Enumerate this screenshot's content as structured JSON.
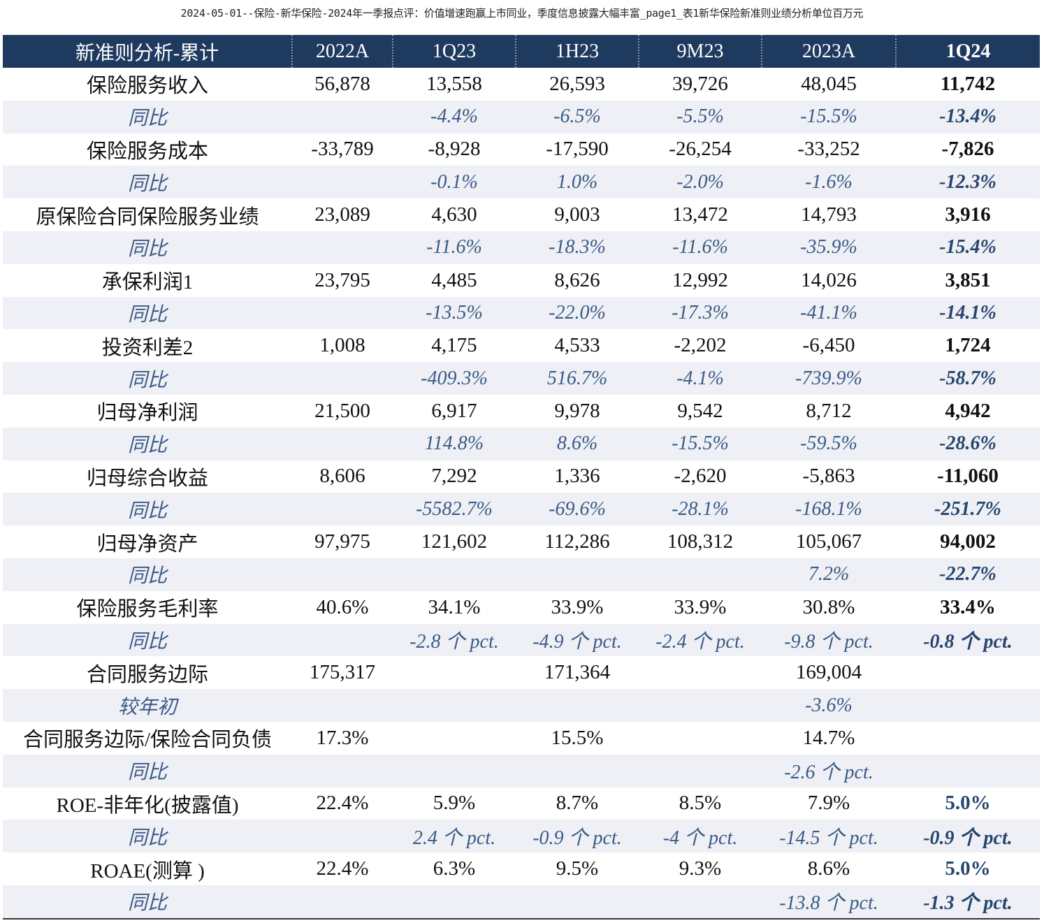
{
  "caption": "2024-05-01--保险-新华保险-2024年一季报点评：价值增速跑赢上市同业，季度信息披露大幅丰富_page1_表1新华保险新准则业绩分析单位百万元",
  "table": {
    "headers": [
      "新准则分析-累计",
      "2022A",
      "1Q23",
      "1H23",
      "9M23",
      "2023A",
      "1Q24"
    ],
    "rows": [
      [
        "保险服务收入",
        "56,878",
        "13,558",
        "26,593",
        "39,726",
        "48,045",
        "11,742"
      ],
      [
        "同比",
        "",
        "-4.4%",
        "-6.5%",
        "-5.5%",
        "-15.5%",
        "-13.4%"
      ],
      [
        "保险服务成本",
        "-33,789",
        "-8,928",
        "-17,590",
        "-26,254",
        "-33,252",
        "-7,826"
      ],
      [
        "同比",
        "",
        "-0.1%",
        "1.0%",
        "-2.0%",
        "-1.6%",
        "-12.3%"
      ],
      [
        "原保险合同保险服务业绩",
        "23,089",
        "4,630",
        "9,003",
        "13,472",
        "14,793",
        "3,916"
      ],
      [
        "同比",
        "",
        "-11.6%",
        "-18.3%",
        "-11.6%",
        "-35.9%",
        "-15.4%"
      ],
      [
        "承保利润1",
        "23,795",
        "4,485",
        "8,626",
        "12,992",
        "14,026",
        "3,851"
      ],
      [
        "同比",
        "",
        "-13.5%",
        "-22.0%",
        "-17.3%",
        "-41.1%",
        "-14.1%"
      ],
      [
        "投资利差2",
        "1,008",
        "4,175",
        "4,533",
        "-2,202",
        "-6,450",
        "1,724"
      ],
      [
        "同比",
        "",
        "-409.3%",
        "516.7%",
        "-4.1%",
        "-739.9%",
        "-58.7%"
      ],
      [
        "归母净利润",
        "21,500",
        "6,917",
        "9,978",
        "9,542",
        "8,712",
        "4,942"
      ],
      [
        "同比",
        "",
        "114.8%",
        "8.6%",
        "-15.5%",
        "-59.5%",
        "-28.6%"
      ],
      [
        "归母综合收益",
        "8,606",
        "7,292",
        "1,336",
        "-2,620",
        "-5,863",
        "-11,060"
      ],
      [
        "同比",
        "",
        "-5582.7%",
        "-69.6%",
        "-28.1%",
        "-168.1%",
        "-251.7%"
      ],
      [
        "归母净资产",
        "97,975",
        "121,602",
        "112,286",
        "108,312",
        "105,067",
        "94,002"
      ],
      [
        "同比",
        "",
        "",
        "",
        "",
        "7.2%",
        "-22.7%"
      ],
      [
        "保险服务毛利率",
        "40.6%",
        "34.1%",
        "33.9%",
        "33.9%",
        "30.8%",
        "33.4%"
      ],
      [
        "同比",
        "",
        "-2.8 个 pct.",
        "-4.9 个 pct.",
        "-2.4 个 pct.",
        "-9.8 个 pct.",
        "-0.8 个 pct."
      ],
      [
        "合同服务边际",
        "175,317",
        "",
        "171,364",
        "",
        "169,004",
        ""
      ],
      [
        "较年初",
        "",
        "",
        "",
        "",
        "-3.6%",
        ""
      ],
      [
        "合同服务边际/保险合同负债",
        "17.3%",
        "",
        "15.5%",
        "",
        "14.7%",
        ""
      ],
      [
        "同比",
        "",
        "",
        "",
        "",
        "-2.6 个 pct.",
        ""
      ],
      [
        "ROE-非年化(披露值)",
        "22.4%",
        "5.9%",
        "8.7%",
        "8.5%",
        "7.9%",
        "5.0%"
      ],
      [
        "同比",
        "",
        "2.4 个 pct.",
        "-0.9 个 pct.",
        "-4 个 pct.",
        "-14.5 个 pct.",
        "-0.9 个 pct."
      ],
      [
        "ROAE(测算 )",
        "22.4%",
        "6.3%",
        "9.5%",
        "9.3%",
        "8.6%",
        "5.0%"
      ],
      [
        "同比",
        "",
        "",
        "",
        "",
        "-13.8 个 pct.",
        "-1.3 个 pct."
      ]
    ]
  },
  "colors": {
    "header_bg": "#1f3a5f",
    "header_text": "#ffffff",
    "yoy_bg": "#eef0f6",
    "yoy_text": "#3a5a86",
    "highlight_text": "#27456e"
  }
}
